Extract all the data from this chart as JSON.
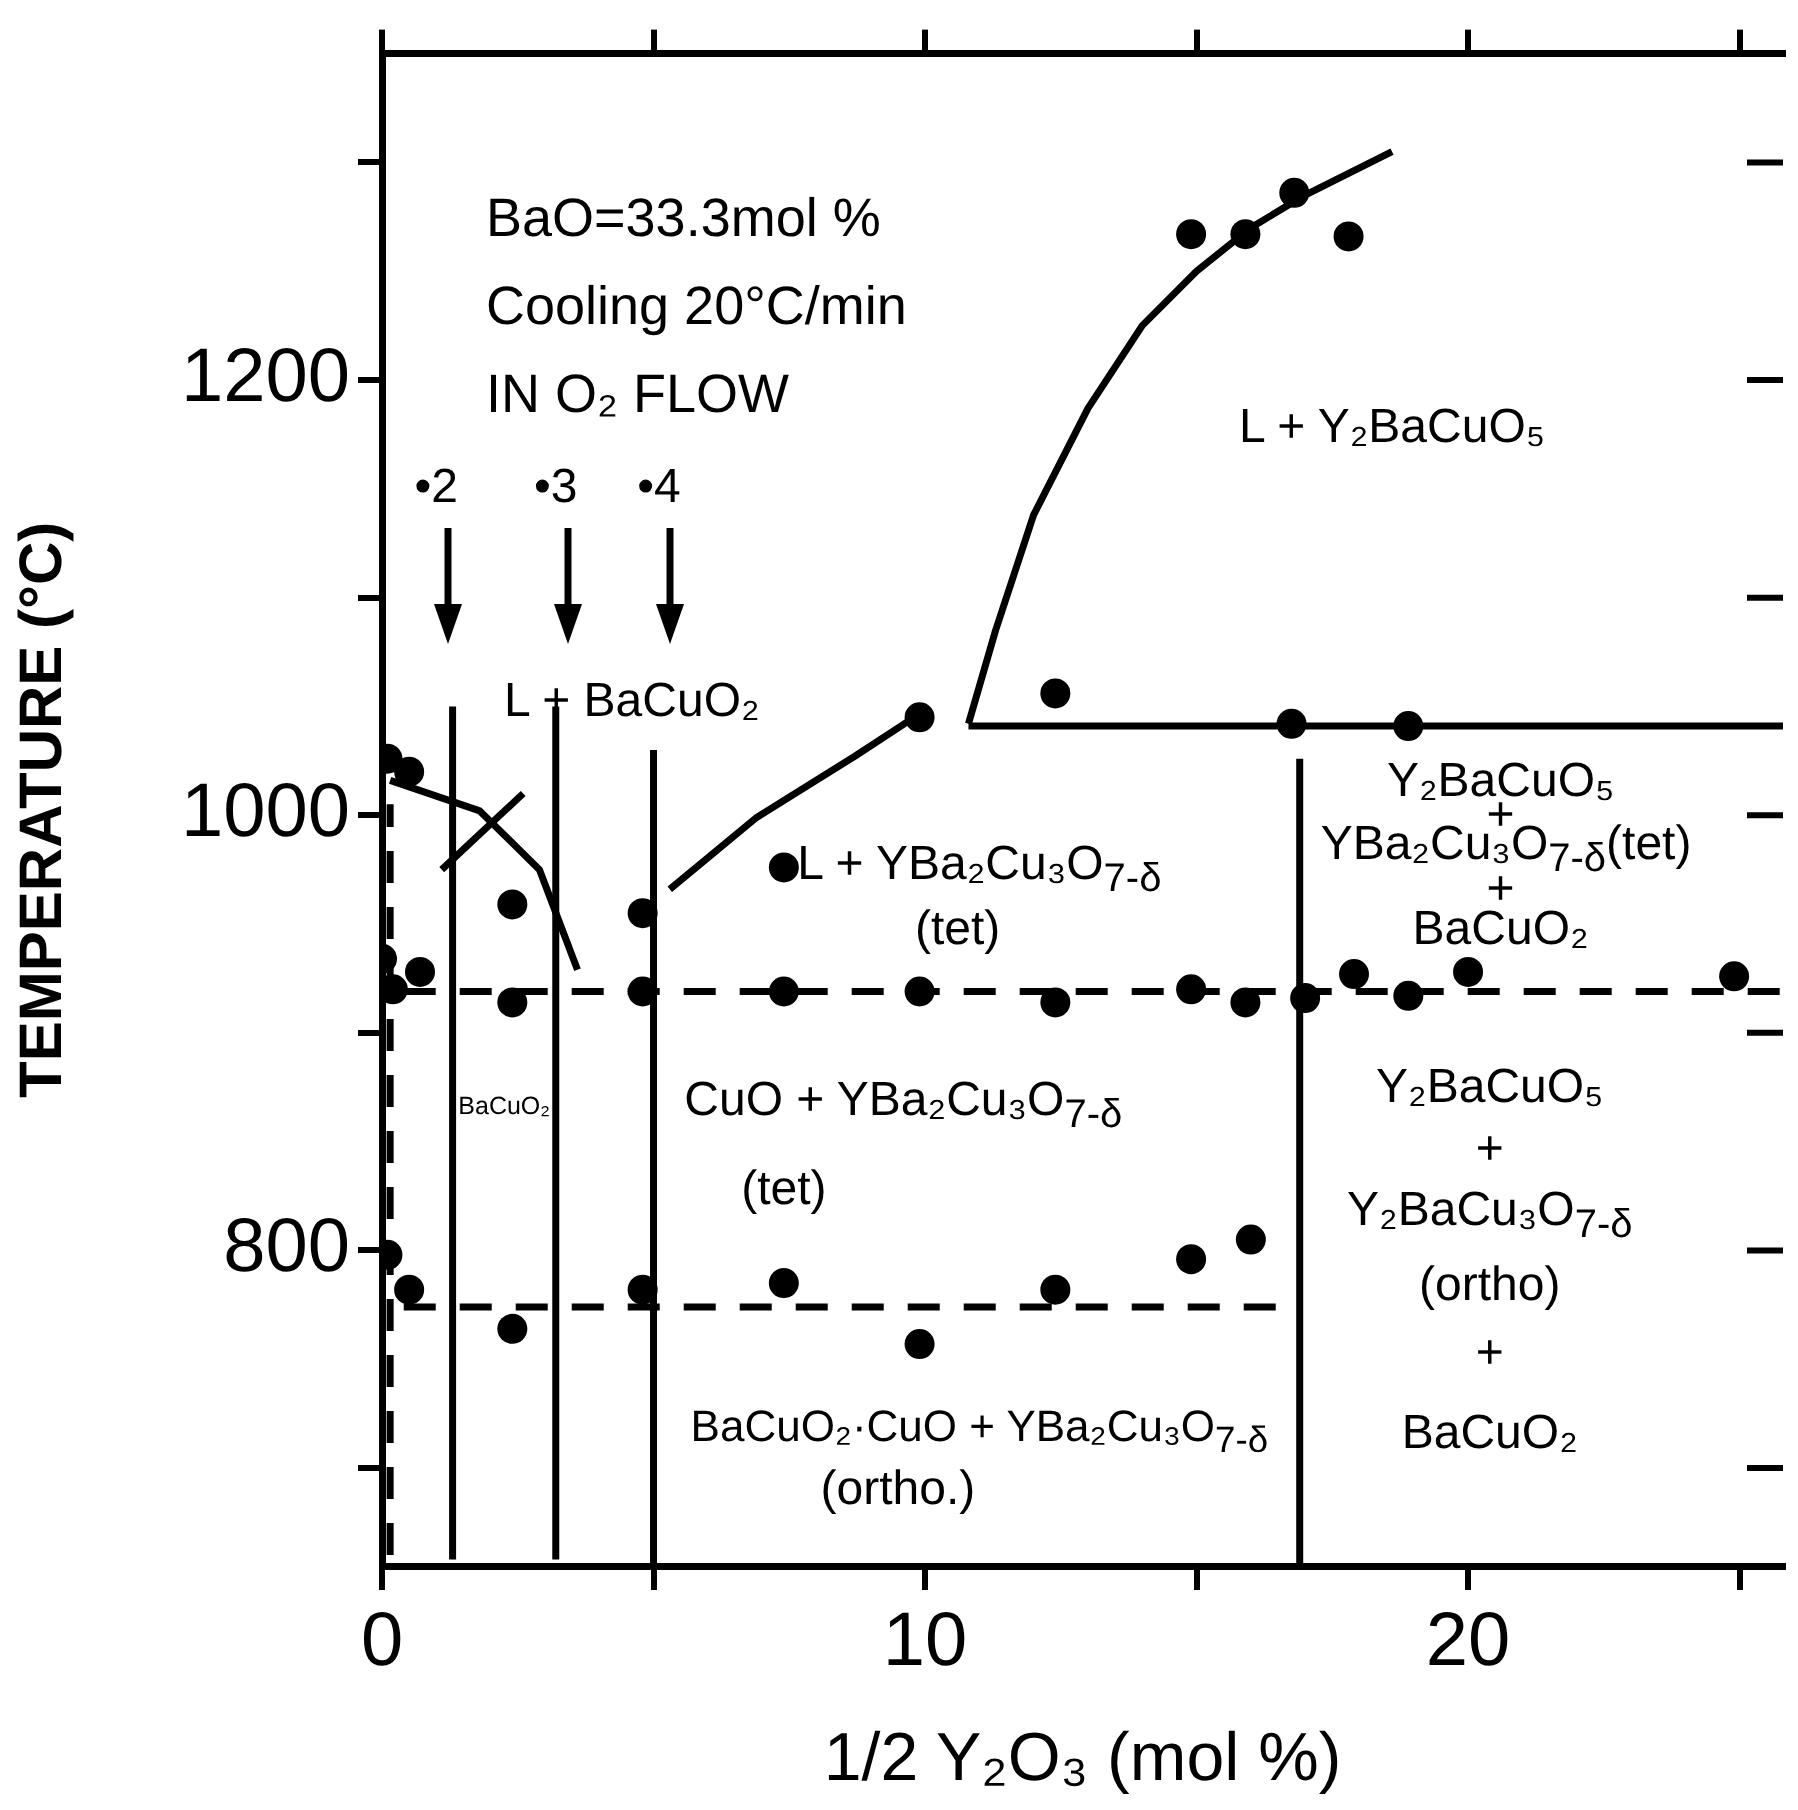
{
  "chart_data": {
    "type": "scatter",
    "xlabel": "1/2 Y₂O₃ (mol %)",
    "ylabel": "TEMPERATURE (°C)",
    "xlim": [
      0,
      25.8
    ],
    "ylim": [
      655,
      1350
    ],
    "xticks": [
      0,
      {
        "value": 5,
        "label": null
      },
      10,
      {
        "value": 15,
        "label": null
      },
      20,
      {
        "value": 25,
        "label": null
      }
    ],
    "yticks": [
      {
        "value": 700,
        "label": null
      },
      800,
      {
        "value": 900,
        "label": null
      },
      1000,
      {
        "value": 1100,
        "label": null
      },
      1200,
      {
        "value": 1300,
        "label": null
      }
    ],
    "grid": false,
    "legend": false,
    "marker": "circle",
    "series": [
      {
        "color": "#000000",
        "x": [
          0.1,
          0.5,
          2.4,
          4.8,
          9.9,
          12.4,
          16.75,
          18.9,
          14.9,
          15.9,
          16.8,
          17.8,
          7.4,
          0,
          0.7,
          0.2,
          2.4,
          4.8,
          7.4,
          9.9,
          12.4,
          14.9,
          15.9,
          17.0,
          17.9,
          18.9,
          20.0,
          24.9,
          0.1,
          0.5,
          2.4,
          4.8,
          7.4,
          9.9,
          12.4,
          14.9,
          16.0
        ],
        "values": [
          1026,
          1020,
          959,
          955,
          1045,
          1056,
          1042,
          1041,
          1267,
          1267,
          1286,
          1266,
          976,
          934,
          928,
          920,
          914,
          919,
          919,
          919,
          914,
          920,
          914,
          916,
          927,
          917,
          928,
          926,
          798,
          782,
          764,
          782,
          785,
          757,
          782,
          796,
          805
        ]
      },
      {
        "type": "line",
        "color": "#000000",
        "line_style": "solid",
        "marker": "none",
        "x": [
          10.8,
          11.3,
          12,
          13,
          14,
          15,
          16,
          17,
          18.6
        ],
        "values": [
          1042,
          1085,
          1138,
          1187,
          1225,
          1250,
          1270,
          1285,
          1305
        ]
      },
      {
        "type": "line",
        "color": "#000000",
        "line_style": "solid",
        "marker": "none",
        "x": [
          0.15,
          1.8,
          2.9,
          3.6
        ],
        "values": [
          1016,
          1002,
          975,
          929
        ]
      },
      {
        "type": "line",
        "color": "#000000",
        "line_style": "solid",
        "marker": "none",
        "x": [
          5.3,
          6.9,
          8.7,
          9.8
        ],
        "values": [
          966,
          999,
          1027,
          1045
        ]
      },
      {
        "type": "line",
        "color": "#000000",
        "line_style": "solid",
        "marker": "none",
        "x": [
          1.1,
          2.6
        ],
        "values": [
          975,
          1010
        ]
      },
      {
        "type": "line",
        "color": "#000000",
        "line_style": "solid",
        "marker": "none",
        "x": [
          10.8,
          25.8
        ],
        "values": [
          1041,
          1041
        ]
      },
      {
        "type": "line",
        "color": "#000000",
        "line_style": "dashed",
        "marker": "none",
        "x": [
          0.4,
          25.8
        ],
        "values": [
          919,
          919
        ]
      },
      {
        "type": "line",
        "color": "#000000",
        "line_style": "dashed",
        "marker": "none",
        "x": [
          0.4,
          16.9
        ],
        "values": [
          774,
          774
        ]
      },
      {
        "type": "line",
        "color": "#000000",
        "line_style": "dashed",
        "marker": "none",
        "x": [
          0.15,
          0.15
        ],
        "values": [
          660,
          1005
        ]
      },
      {
        "type": "line",
        "color": "#000000",
        "line_style": "solid",
        "marker": "none",
        "x": [
          1.3,
          1.3
        ],
        "values": [
          658,
          1050
        ]
      },
      {
        "type": "line",
        "color": "#000000",
        "line_style": "solid",
        "marker": "none",
        "x": [
          3.2,
          3.2
        ],
        "values": [
          658,
          1050
        ]
      },
      {
        "type": "line",
        "color": "#000000",
        "line_style": "solid",
        "marker": "none",
        "x": [
          5.0,
          5.0
        ],
        "values": [
          655,
          1030
        ]
      },
      {
        "type": "line",
        "color": "#000000",
        "line_style": "solid",
        "marker": "none",
        "x": [
          16.9,
          16.9
        ],
        "values": [
          655,
          1026
        ]
      }
    ],
    "annotations": [
      "BaO=33.3mol %",
      "Cooling 20°C/min",
      "IN O₂ FLOW",
      "•2",
      "•3",
      "•4",
      "L + Y₂BaCuO₅",
      "L + BaCuO₂",
      "L + YBa₂Cu₃O$_{7-δ}$",
      "(tet)",
      "BaCuO₂",
      "CuO + YBa₂Cu₃O$_{7-δ}$",
      "(tet)",
      "BaCuO₂·CuO + YBa₂Cu₃O$_{7-δ}$",
      "(ortho.)",
      "Y₂BaCuO₅",
      "+",
      "YBa₂Cu₃O$_{7-δ}$(tet)",
      "+",
      "BaCuO₂",
      "Y₂BaCuO₅",
      "+",
      "Y₂BaCu₃O$_{7-δ}$",
      "(ortho)",
      "+",
      "BaCuO₂"
    ]
  }
}
